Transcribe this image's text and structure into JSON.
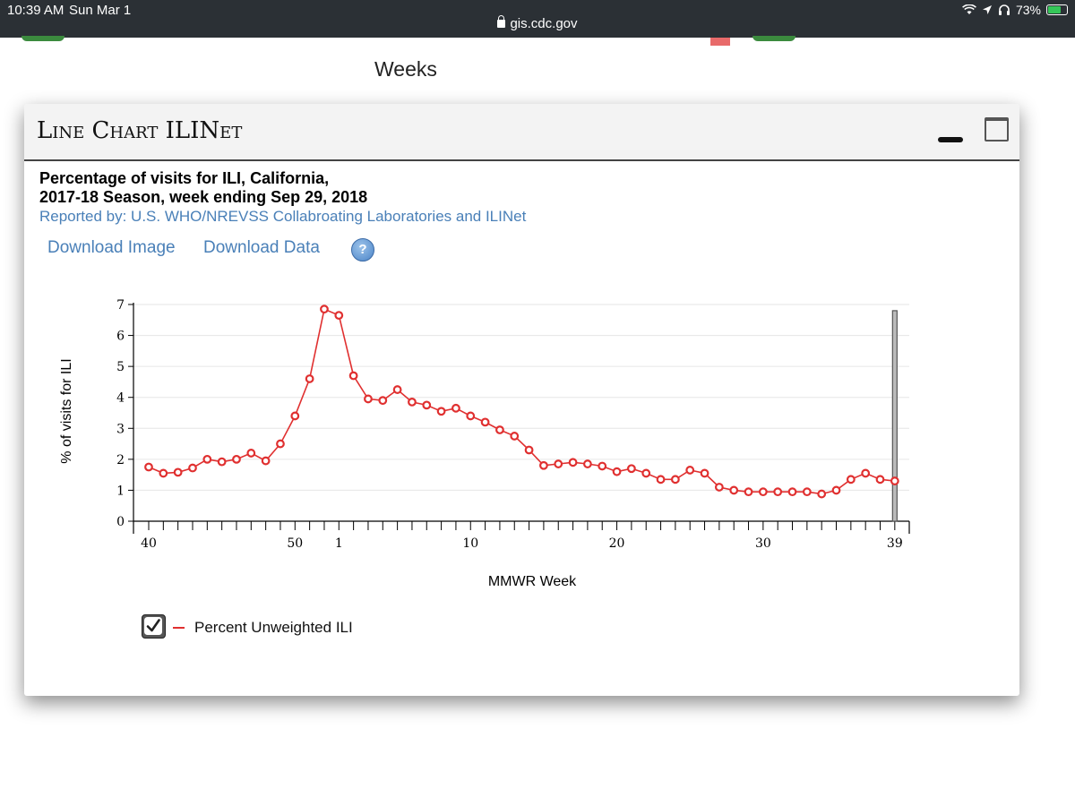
{
  "status_bar": {
    "time": "10:39 AM",
    "date": "Sun Mar 1",
    "url": "gis.cdc.gov",
    "battery": "73%",
    "battery_level": 0.73
  },
  "background": {
    "weeks_label": "Weeks"
  },
  "panel": {
    "title": "Line Chart ILINet",
    "chart_title_line1": "Percentage of visits for ILI, California,",
    "chart_title_line2": "2017-18 Season, week ending Sep 29, 2018",
    "reported_by": "Reported by: U.S. WHO/NREVSS Collabroating Laboratories and ILINet",
    "download_image": "Download Image",
    "download_data": "Download Data",
    "help_label": "?"
  },
  "chart_data": {
    "type": "line",
    "xlabel": "MMWR Week",
    "ylabel": "% of visits for ILI",
    "ylim": [
      0,
      7
    ],
    "yticks": [
      0,
      1,
      2,
      3,
      4,
      5,
      6,
      7
    ],
    "grid": true,
    "x_tick_labels": [
      "40",
      "50",
      "1",
      "10",
      "20",
      "30",
      "39"
    ],
    "weeks": [
      40,
      41,
      42,
      43,
      44,
      45,
      46,
      47,
      48,
      49,
      50,
      51,
      52,
      1,
      2,
      3,
      4,
      5,
      6,
      7,
      8,
      9,
      10,
      11,
      12,
      13,
      14,
      15,
      16,
      17,
      18,
      19,
      20,
      21,
      22,
      23,
      24,
      25,
      26,
      27,
      28,
      29,
      30,
      31,
      32,
      33,
      34,
      35,
      36,
      37,
      38,
      39
    ],
    "series": [
      {
        "name": "Percent Unweighted ILI",
        "color": "#e03030",
        "values": [
          1.75,
          1.55,
          1.58,
          1.72,
          2.0,
          1.92,
          2.0,
          2.2,
          1.95,
          2.5,
          3.4,
          4.6,
          6.85,
          6.65,
          4.7,
          3.95,
          3.9,
          4.25,
          3.85,
          3.75,
          3.55,
          3.65,
          3.4,
          3.2,
          2.95,
          2.75,
          2.3,
          1.8,
          1.85,
          1.9,
          1.85,
          1.78,
          1.6,
          1.7,
          1.55,
          1.35,
          1.35,
          1.65,
          1.55,
          1.1,
          1.0,
          0.95,
          0.95,
          0.95,
          0.95,
          0.95,
          0.88,
          1.0,
          1.35,
          1.55,
          1.35,
          1.3
        ]
      }
    ],
    "legend": {
      "label": "Percent Unweighted ILI",
      "checked": true,
      "placement": "bottom-left"
    }
  }
}
